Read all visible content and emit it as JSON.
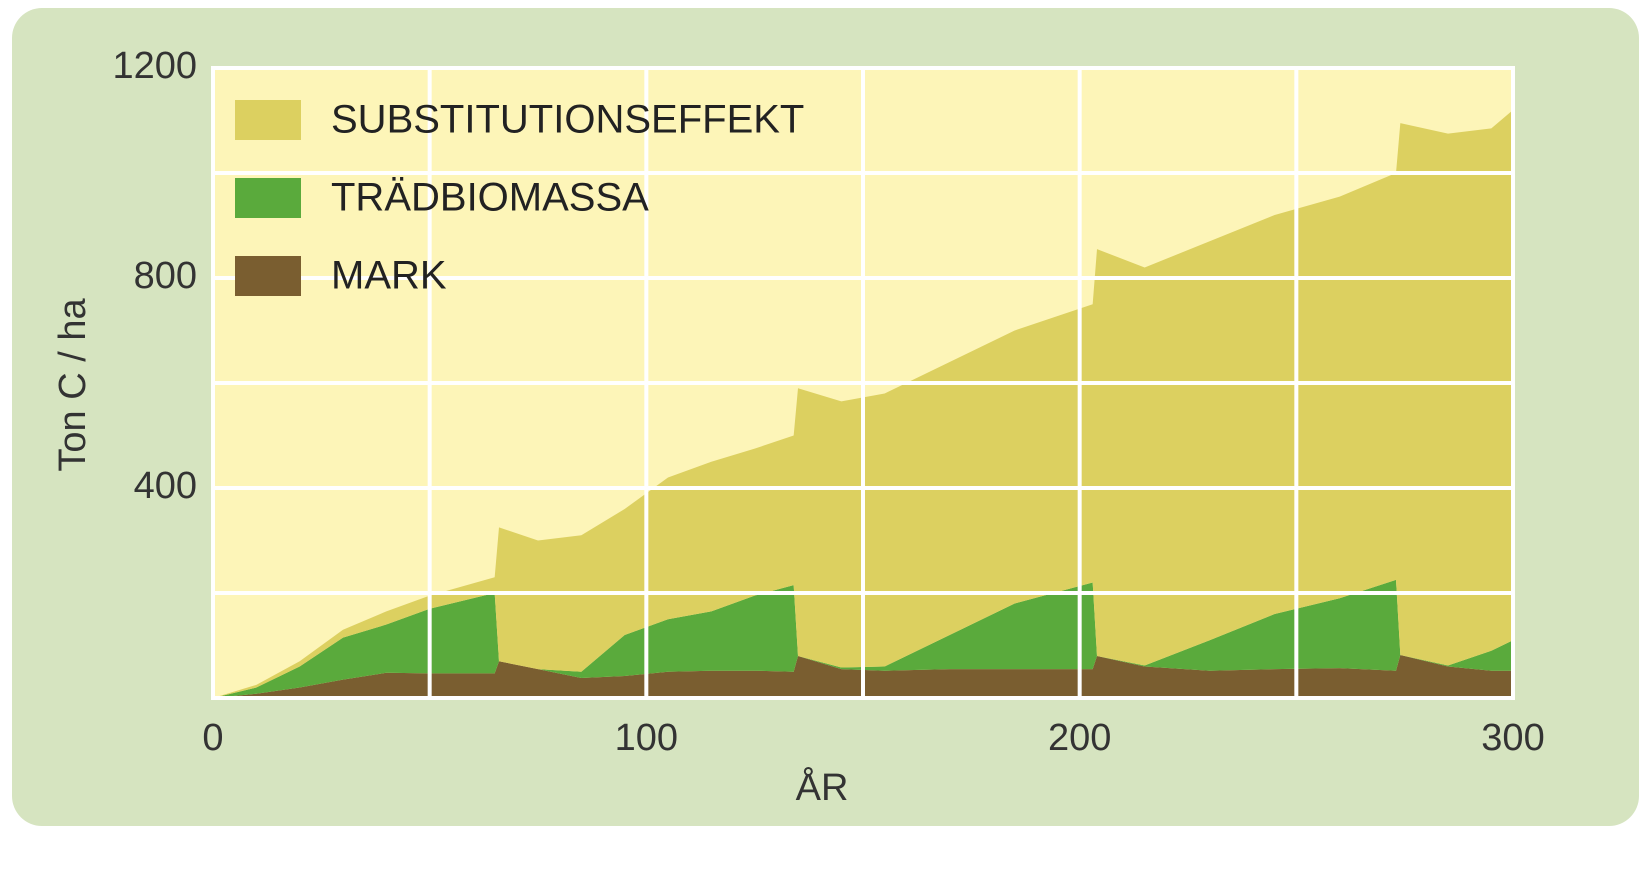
{
  "chart_data": {
    "type": "stacked_area",
    "x_label": "ÅR",
    "y_label": "Ton C / ha",
    "x": [
      0,
      10,
      20,
      30,
      40,
      50,
      65,
      66,
      75,
      85,
      95,
      105,
      115,
      125,
      134,
      135,
      145,
      155,
      170,
      185,
      203,
      204,
      215,
      230,
      245,
      260,
      273,
      274,
      285,
      295,
      300
    ],
    "series": [
      {
        "name": "MARK",
        "color": "#7a5e30",
        "values": [
          0,
          8,
          20,
          35,
          48,
          47,
          47,
          70,
          55,
          38,
          42,
          50,
          52,
          52,
          50,
          80,
          55,
          52,
          55,
          55,
          55,
          80,
          60,
          52,
          55,
          57,
          52,
          82,
          60,
          52,
          52
        ]
      },
      {
        "name": "TRÄDBIOMASSA",
        "color": "#5aaa3c",
        "values": [
          0,
          12,
          40,
          80,
          92,
          123,
          153,
          0,
          0,
          12,
          78,
          100,
          113,
          143,
          165,
          0,
          3,
          8,
          65,
          125,
          165,
          0,
          2,
          58,
          105,
          133,
          173,
          0,
          2,
          38,
          58
        ]
      },
      {
        "name": "SUBSTITUTIONSEFFEKT",
        "color": "#dcd060",
        "values": [
          0,
          5,
          10,
          15,
          25,
          25,
          30,
          255,
          245,
          260,
          240,
          270,
          285,
          280,
          285,
          510,
          507,
          520,
          520,
          520,
          530,
          775,
          758,
          760,
          760,
          765,
          775,
          1013,
          1013,
          995,
          1010
        ]
      }
    ],
    "xlim": [
      0,
      300
    ],
    "ylim": [
      0,
      1200
    ],
    "xticks": [
      0,
      100,
      200,
      300
    ],
    "yticks": [
      400,
      800,
      1200
    ],
    "grid_x": [
      50,
      100,
      150,
      200,
      250
    ],
    "grid_y": [
      200,
      400,
      600,
      800,
      1000
    ],
    "legend": "upper left"
  }
}
